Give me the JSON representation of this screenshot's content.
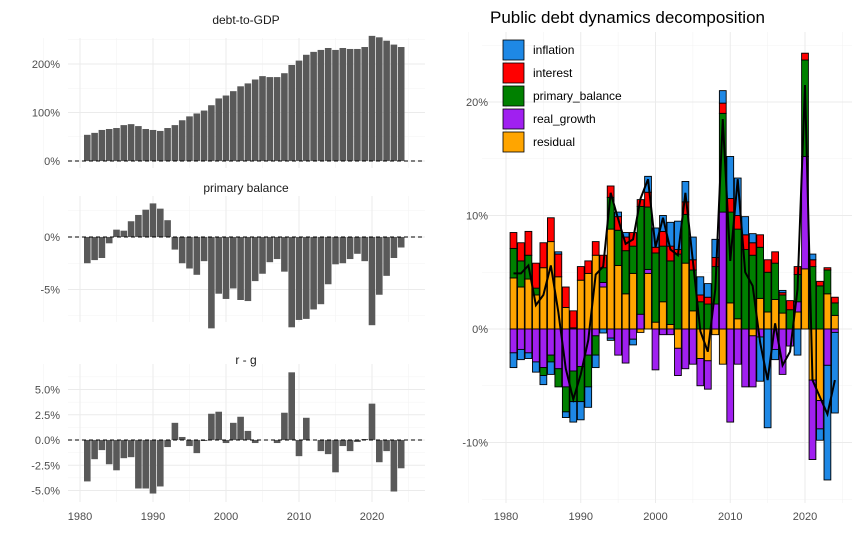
{
  "chart_data": [
    {
      "type": "bar",
      "title": "debt-to-GDP",
      "x": [
        1981,
        1982,
        1983,
        1984,
        1985,
        1986,
        1987,
        1988,
        1989,
        1990,
        1991,
        1992,
        1993,
        1994,
        1995,
        1996,
        1997,
        1998,
        1999,
        2000,
        2001,
        2002,
        2003,
        2004,
        2005,
        2006,
        2007,
        2008,
        2009,
        2010,
        2011,
        2012,
        2013,
        2014,
        2015,
        2016,
        2017,
        2018,
        2019,
        2020,
        2021,
        2022,
        2023,
        2024
      ],
      "values": [
        54,
        58,
        64,
        66,
        68,
        74,
        76,
        72,
        66,
        64,
        62,
        68,
        74,
        84,
        92,
        98,
        104,
        115,
        129,
        135,
        144,
        154,
        160,
        168,
        175,
        173,
        173,
        181,
        198,
        207,
        219,
        225,
        229,
        233,
        229,
        233,
        231,
        231,
        235,
        258,
        255,
        248,
        240,
        235
      ],
      "unit": "%",
      "ylim": [
        0,
        265
      ],
      "yticks": [
        "0%",
        "100%",
        "200%"
      ],
      "ytick_values": [
        0,
        100,
        200
      ]
    },
    {
      "type": "bar",
      "title": "primary balance",
      "x": [
        1981,
        1982,
        1983,
        1984,
        1985,
        1986,
        1987,
        1988,
        1989,
        1990,
        1991,
        1992,
        1993,
        1994,
        1995,
        1996,
        1997,
        1998,
        1999,
        2000,
        2001,
        2002,
        2003,
        2004,
        2005,
        2006,
        2007,
        2008,
        2009,
        2010,
        2011,
        2012,
        2013,
        2014,
        2015,
        2016,
        2017,
        2018,
        2019,
        2020,
        2021,
        2022,
        2023,
        2024
      ],
      "values": [
        -2.5,
        -2.2,
        -2.0,
        -0.6,
        0.7,
        0.6,
        1.5,
        2.1,
        2.6,
        3.2,
        2.7,
        1.6,
        -1.2,
        -2.5,
        -3.0,
        -3.6,
        -2.3,
        -8.7,
        -5.4,
        -5.9,
        -4.9,
        -6.0,
        -6.1,
        -4.2,
        -3.5,
        -2.4,
        -2.1,
        -3.3,
        -8.6,
        -7.9,
        -7.8,
        -6.9,
        -6.4,
        -4.5,
        -2.6,
        -2.5,
        -2.1,
        -1.6,
        -2.3,
        -8.4,
        -5.5,
        -3.7,
        -2.0,
        -1.0
      ],
      "unit": "%",
      "ylim": [
        -8.9,
        3.9
      ],
      "yticks": [
        "-5%",
        "0%"
      ],
      "ytick_values": [
        -5,
        0
      ]
    },
    {
      "type": "bar",
      "title": "r - g",
      "x": [
        1981,
        1982,
        1983,
        1984,
        1985,
        1986,
        1987,
        1988,
        1989,
        1990,
        1991,
        1992,
        1993,
        1994,
        1995,
        1996,
        1997,
        1998,
        1999,
        2000,
        2001,
        2002,
        2003,
        2004,
        2005,
        2006,
        2007,
        2008,
        2009,
        2010,
        2011,
        2012,
        2013,
        2014,
        2015,
        2016,
        2017,
        2018,
        2019,
        2020,
        2021,
        2022,
        2023,
        2024
      ],
      "values": [
        -4.1,
        -1.9,
        -1.0,
        -2.4,
        -3.0,
        -1.8,
        -1.7,
        -4.8,
        -4.8,
        -5.3,
        -4.6,
        -0.7,
        1.7,
        0.3,
        -0.6,
        -1.3,
        -0.1,
        2.6,
        2.8,
        -0.3,
        1.7,
        2.3,
        0.9,
        -0.3,
        0.0,
        0.0,
        -0.3,
        2.7,
        6.7,
        -1.6,
        2.2,
        0.0,
        -1.1,
        -1.4,
        -3.2,
        -0.6,
        -1.1,
        -0.2,
        0.1,
        3.6,
        -2.2,
        -1.1,
        -5.1,
        -2.8
      ],
      "unit": "%",
      "ylim": [
        -5.8,
        7.4
      ],
      "yticks": [
        "-5.0%",
        "-2.5%",
        "0.0%",
        "2.5%",
        "5.0%"
      ],
      "ytick_values": [
        -5,
        -2.5,
        0,
        2.5,
        5
      ],
      "xticks": [
        "1980",
        "1990",
        "2000",
        "2010",
        "2020"
      ],
      "xtick_values": [
        1980,
        1990,
        2000,
        2010,
        2020
      ]
    },
    {
      "type": "stacked_bar_with_line",
      "title": "Public debt dynamics decomposition",
      "legend_position": "top-left",
      "series": [
        {
          "name": "inflation",
          "color": "#1E88E5",
          "values": [
            -1.3,
            -0.9,
            -0.5,
            -0.9,
            -0.8,
            -1.1,
            0.2,
            -0.5,
            -1.8,
            -1.6,
            -1.8,
            -1.1,
            -0.35,
            -0.2,
            0.4,
            0.4,
            -0.5,
            0,
            1.4,
            1.7,
            1.4,
            2.1,
            2.5,
            1.8,
            2.0,
            1.6,
            1.2,
            1.6,
            1.1,
            3.7,
            3.3,
            1.6,
            0.8,
            -3.9,
            -8.7,
            -0.9,
            0.2,
            0,
            -2.3,
            0,
            0.5,
            -1.0,
            -10.1,
            -7.1
          ]
        },
        {
          "name": "interest",
          "color": "#FF0000",
          "values": [
            1.4,
            1.6,
            2.1,
            2.2,
            2.2,
            2.1,
            2.0,
            1.8,
            1.5,
            1.2,
            1.1,
            1.2,
            1.1,
            1.0,
            1.2,
            1.2,
            1.2,
            0.6,
            1.3,
            0.5,
            1.3,
            1.3,
            0.4,
            1.1,
            0.9,
            0.6,
            0.6,
            0.8,
            0.9,
            1.2,
            1.2,
            1.3,
            1.1,
            1.1,
            1.1,
            1.0,
            0.2,
            0.8,
            0.7,
            0.6,
            0.6,
            0.4,
            0.2,
            0.5
          ]
        },
        {
          "name": "primary_balance",
          "color": "#008000",
          "values": [
            2.6,
            2.3,
            2.1,
            0.6,
            -0.7,
            -0.6,
            -1.6,
            -2.2,
            -2.7,
            -3.1,
            -2.8,
            -1.7,
            1.3,
            2.8,
            3.1,
            3.8,
            2.4,
            9.5,
            5.5,
            6.1,
            4.9,
            5.6,
            6.6,
            4.3,
            3.6,
            2.4,
            2.2,
            3.3,
            8.7,
            8.0,
            7.9,
            7.0,
            6.5,
            4.5,
            3.5,
            3.2,
            1.6,
            1.7,
            2.4,
            8.5,
            5.5,
            3.8,
            2.1,
            1.1
          ]
        },
        {
          "name": "real_growth",
          "color": "#A020F0",
          "values": [
            -2.1,
            -1.8,
            -2.1,
            -2.9,
            -3.4,
            -2.3,
            -3.5,
            -5.1,
            -3.7,
            -3.3,
            -2.3,
            -0.6,
            0.4,
            -0.8,
            -2.3,
            -3.0,
            -0.9,
            1.3,
            0.35,
            -3.6,
            -0.5,
            -0.5,
            -2.4,
            -3.5,
            -3.1,
            -2.4,
            -2.5,
            2.2,
            10.3,
            -8.2,
            -3.1,
            -5.1,
            -4.5,
            -0.7,
            0,
            -1.8,
            -4.0,
            -1.5,
            0.9,
            9.9,
            -7.0,
            -2.5,
            -3.2,
            -0.3
          ]
        },
        {
          "name": "residual",
          "color": "#FFA500",
          "values": [
            4.5,
            3.7,
            4.4,
            3.0,
            5.4,
            7.7,
            4.6,
            1.9,
            0.1,
            4.3,
            4.9,
            6.5,
            3.7,
            8.8,
            5.6,
            3.1,
            4.9,
            -0.3,
            4.9,
            0.6,
            2.4,
            0.4,
            -1.7,
            5.8,
            1.6,
            -2.6,
            -2.8,
            -0.5,
            -3.1,
            2.3,
            0.9,
            0,
            -0.6,
            2.7,
            1.5,
            2.6,
            1.4,
            0,
            1.5,
            5.3,
            -4.5,
            -6.3,
            3.1,
            1.2
          ]
        }
      ],
      "x": [
        1981,
        1982,
        1983,
        1984,
        1985,
        1986,
        1987,
        1988,
        1989,
        1990,
        1991,
        1992,
        1993,
        1994,
        1995,
        1996,
        1997,
        1998,
        1999,
        2000,
        2001,
        2002,
        2003,
        2004,
        2005,
        2006,
        2007,
        2008,
        2009,
        2010,
        2011,
        2012,
        2013,
        2014,
        2015,
        2016,
        2017,
        2018,
        2019,
        2020,
        2021,
        2022,
        2023,
        2024
      ],
      "line": [
        4.9,
        4.9,
        5.6,
        2.1,
        3.0,
        5.6,
        1.5,
        -3.5,
        -6.2,
        -4.0,
        -1.0,
        4.8,
        5.5,
        12.0,
        9.7,
        7.5,
        7.9,
        11.5,
        13.2,
        7.2,
        9.8,
        7.0,
        6.5,
        12.0,
        6.0,
        -0.2,
        -2.0,
        3.5,
        18.5,
        6.0,
        13.2,
        5.0,
        3.8,
        -1.2,
        -4.5,
        0.5,
        -3.2,
        -2.0,
        3.5,
        21.5,
        -4.5,
        -6.0,
        -7.5,
        -4.5
      ],
      "line_color": "#000000",
      "ylim": [
        -15,
        26
      ],
      "yticks": [
        "-10%",
        "0%",
        "10%",
        "20%"
      ],
      "ytick_values": [
        -10,
        0,
        10,
        20
      ],
      "xticks": [
        "1980",
        "1990",
        "2000",
        "2010",
        "2020"
      ],
      "xtick_values": [
        1980,
        1990,
        2000,
        2010,
        2020
      ]
    }
  ]
}
